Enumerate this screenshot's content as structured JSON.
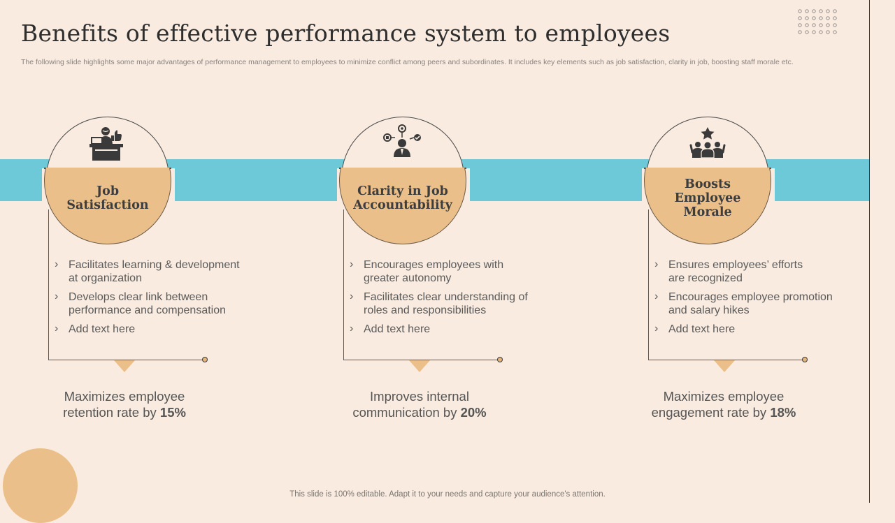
{
  "title": "Benefits of effective performance system to employees",
  "subtitle": "The following slide highlights some major advantages of performance management to employees to minimize conflict among peers and subordinates. It includes key elements such as job satisfaction, clarity in job, boosting staff morale etc.",
  "footer": "This slide is 100% editable. Adapt it to your needs and capture your audience's attention.",
  "colors": {
    "background": "#f9ebdf",
    "band": "#6dc8d8",
    "accent": "#ebbf89",
    "text": "#555555"
  },
  "cards": [
    {
      "icon": "employee-desk-thumbs-up-icon",
      "heading_lines": [
        "Job",
        "Satisfaction"
      ],
      "items": [
        {
          "line1": "Facilitates learning & development",
          "line2": "at organization"
        },
        {
          "line1": "Develops clear link between",
          "line2": "performance and compensation"
        },
        {
          "line1": "Add text here",
          "line2": ""
        }
      ],
      "stat": {
        "line1": "Maximizes employee",
        "line2_text": "retention rate by ",
        "value": "15%"
      }
    },
    {
      "icon": "businessman-network-icon",
      "heading_lines": [
        "Clarity in Job",
        "Accountability"
      ],
      "items": [
        {
          "line1": "Encourages employees with",
          "line2": "greater autonomy"
        },
        {
          "line1": "Facilitates clear understanding  of",
          "line2": "roles and responsibilities"
        },
        {
          "line1": "Add text here",
          "line2": ""
        }
      ],
      "stat": {
        "line1": "Improves internal",
        "line2_text": "communication by ",
        "value": "20%"
      }
    },
    {
      "icon": "team-star-icon",
      "heading_lines": [
        "Boosts",
        "Employee",
        "Morale"
      ],
      "items": [
        {
          "line1": "Ensures employees’ efforts",
          "line2": "are recognized"
        },
        {
          "line1": "Encourages employee promotion",
          "line2": "and salary hikes"
        },
        {
          "line1": "Add text here",
          "line2": ""
        }
      ],
      "stat": {
        "line1": "Maximizes employee",
        "line2_text": "engagement rate by ",
        "value": "18%"
      }
    }
  ]
}
